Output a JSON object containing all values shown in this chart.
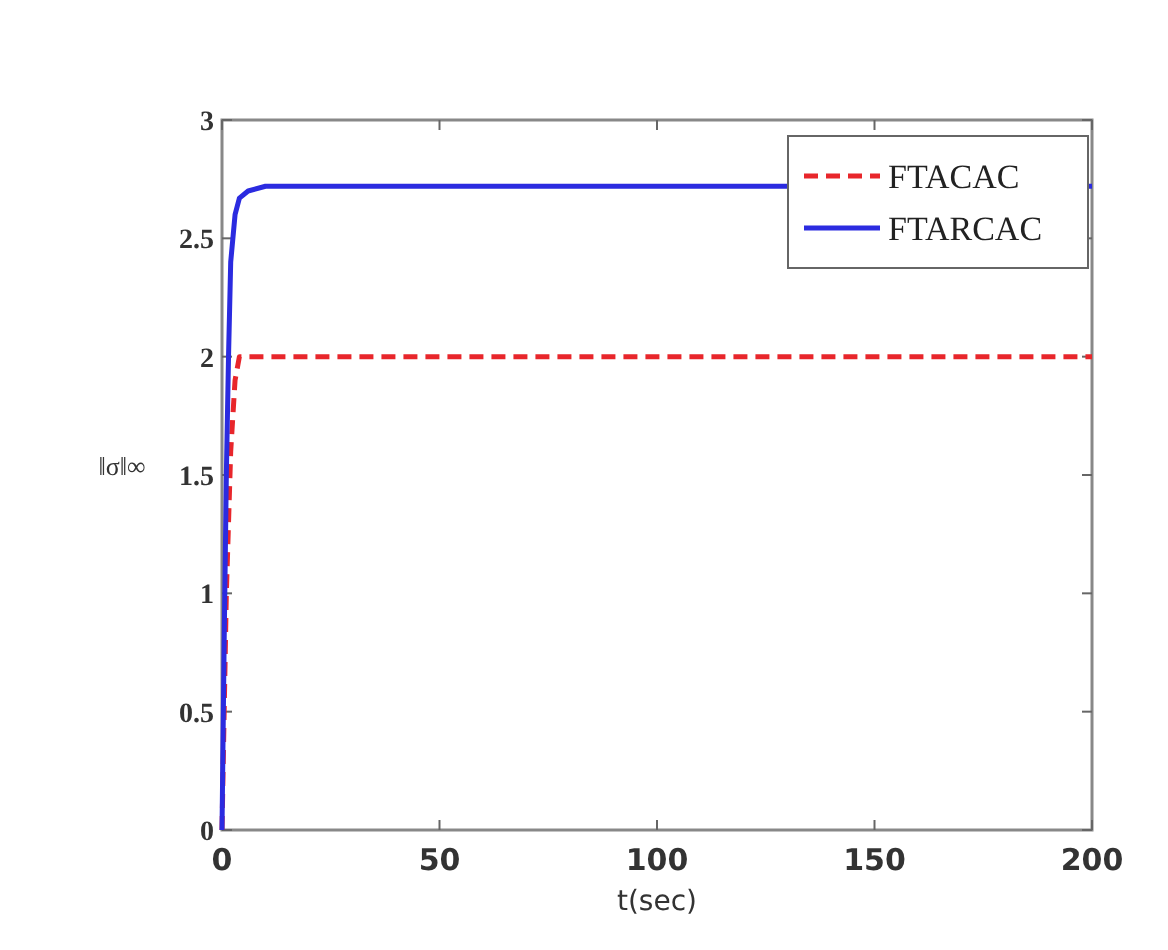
{
  "chart_data": {
    "type": "line",
    "xlabel": "t(sec)",
    "ylabel": "‖σ‖∞",
    "xlim": [
      0,
      200
    ],
    "xticks": [
      0,
      50,
      100,
      150,
      200
    ],
    "ylim": [
      0,
      3
    ],
    "yticks": [
      0,
      {
        "value": 0.5,
        "label": "0.5"
      },
      1,
      {
        "value": 1.5,
        "label": "1.5"
      },
      2,
      {
        "value": 2.5,
        "label": "2.5"
      },
      3
    ],
    "legend": "top right",
    "grid": false,
    "series": [
      {
        "name": "FTACAC",
        "color": "#e8262b",
        "line_style": "dashed",
        "x": [
          0,
          1,
          2,
          3,
          4,
          200
        ],
        "values": [
          0,
          1.0,
          1.6,
          1.9,
          2.0,
          2.0
        ]
      },
      {
        "name": "FTARCAC",
        "color": "#2b2be0",
        "line_style": "solid",
        "x": [
          0,
          0.5,
          1,
          1.5,
          2,
          3,
          4,
          6,
          10,
          200
        ],
        "values": [
          0,
          0.8,
          1.5,
          2.0,
          2.4,
          2.6,
          2.67,
          2.7,
          2.72,
          2.72
        ]
      }
    ]
  }
}
